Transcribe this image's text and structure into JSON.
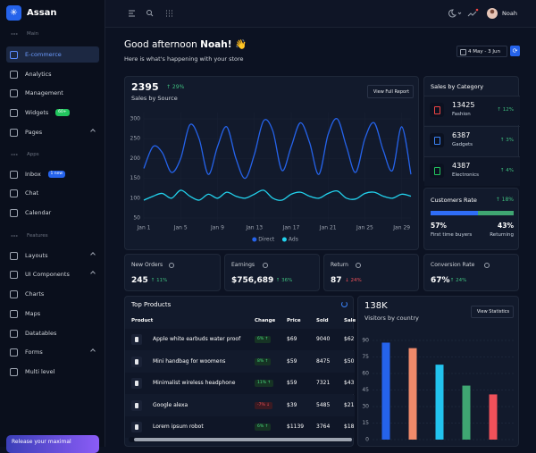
{
  "brand": "Assan",
  "nav": {
    "sections": [
      {
        "label": "Main",
        "items": [
          {
            "label": "E-commerce",
            "active": true
          },
          {
            "label": "Analytics"
          },
          {
            "label": "Management"
          },
          {
            "label": "Widgets",
            "badge": "60+",
            "badge_color": "#22c55e"
          },
          {
            "label": "Pages",
            "expandable": true
          }
        ]
      },
      {
        "label": "Apps",
        "items": [
          {
            "label": "Inbox",
            "badge": "1 new",
            "badge_color": "#2563eb"
          },
          {
            "label": "Chat"
          },
          {
            "label": "Calendar"
          }
        ]
      },
      {
        "label": "Features",
        "items": [
          {
            "label": "Layouts",
            "expandable": true
          },
          {
            "label": "UI Components",
            "expandable": true
          },
          {
            "label": "Charts"
          },
          {
            "label": "Maps"
          },
          {
            "label": "Datatables"
          },
          {
            "label": "Forms",
            "expandable": true
          },
          {
            "label": "Multi level"
          }
        ]
      }
    ],
    "promo": "Release your maximal"
  },
  "topbar": {
    "user": "Noah"
  },
  "header": {
    "greeting": "Good afternoon",
    "name": "Noah! 👋",
    "subtitle": "Here is what's happening with your store",
    "date_range": "4 May - 3 Jun"
  },
  "sales_source": {
    "total": "2395",
    "change": "↑ 29%",
    "title": "Sales by Source",
    "button": "View Full Report"
  },
  "sales_by_category": {
    "title": "Sales by Category",
    "items": [
      {
        "value": "13425",
        "name": "Fashion",
        "change": "↑ 12%",
        "color": "#ef4444"
      },
      {
        "value": "6387",
        "name": "Gadgets",
        "change": "↑ 3%",
        "color": "#3b82f6"
      },
      {
        "value": "4387",
        "name": "Electronics",
        "change": "↑ 4%",
        "color": "#22c55e"
      }
    ]
  },
  "customers_rate": {
    "title": "Customers Rate",
    "change": "↑ 18%",
    "segments": [
      {
        "value": 57,
        "label": "57%",
        "name": "First time buyers",
        "color": "#2f6df6"
      },
      {
        "value": 43,
        "label": "43%",
        "name": "Returning",
        "color": "#3fa672"
      }
    ]
  },
  "stats": [
    {
      "title": "New Orders",
      "value": "245",
      "change": "↑ 11%"
    },
    {
      "title": "Earnings",
      "value": "$756,689",
      "change": "↑ 36%"
    },
    {
      "title": "Return",
      "value": "87",
      "change": "↓ 24%"
    },
    {
      "title": "Conversion Rate",
      "value": "67%",
      "change": "↑ 24%"
    }
  ],
  "top_products": {
    "title": "Top Products",
    "columns": [
      "Product",
      "Change",
      "Price",
      "Sold",
      "Sale"
    ],
    "rows": [
      [
        "Apple white earbuds water proof",
        "6% ↑",
        "$69",
        "9040",
        "$62"
      ],
      [
        "Mini handbag for woomens",
        "8% ↑",
        "$59",
        "8475",
        "$50"
      ],
      [
        "Minimalist wireless headphone",
        "11% ↑",
        "$59",
        "7321",
        "$43"
      ],
      [
        "Google alexa",
        "-7% ↓",
        "$39",
        "5485",
        "$21"
      ],
      [
        "Lorem ipsum robot",
        "6% ↑",
        "$1139",
        "3764",
        "$18"
      ]
    ]
  },
  "visitors": {
    "total": "138K",
    "title": "Visitors by country",
    "button": "View Statistics"
  },
  "chart_data": [
    {
      "type": "line",
      "x": [
        1,
        2,
        3,
        4,
        5,
        6,
        7,
        8,
        9,
        10,
        11,
        12,
        13,
        14,
        15,
        16,
        17,
        18,
        19,
        20,
        21,
        22,
        23,
        24,
        25,
        26,
        27,
        28,
        29,
        30
      ],
      "series": [
        {
          "name": "Direct",
          "color": "#2563eb",
          "values": [
            175,
            230,
            215,
            165,
            200,
            285,
            250,
            160,
            230,
            280,
            200,
            150,
            210,
            295,
            270,
            170,
            230,
            290,
            240,
            160,
            260,
            300,
            230,
            165,
            250,
            290,
            220,
            170,
            280,
            160
          ]
        },
        {
          "name": "Ads",
          "color": "#22d3ee",
          "values": [
            95,
            105,
            112,
            100,
            120,
            105,
            95,
            110,
            100,
            115,
            105,
            100,
            110,
            120,
            100,
            95,
            110,
            115,
            105,
            100,
            112,
            118,
            100,
            98,
            112,
            115,
            105,
            100,
            110,
            105
          ]
        }
      ],
      "xlim": [
        1,
        30
      ],
      "xticks": [
        {
          "value": 1,
          "label": "Jan 1"
        },
        {
          "value": 5,
          "label": "Jan 5"
        },
        {
          "value": 9,
          "label": "Jan 9"
        },
        {
          "value": 13,
          "label": "Jan 13"
        },
        {
          "value": 17,
          "label": "Jan 17"
        },
        {
          "value": 21,
          "label": "Jan 21"
        },
        {
          "value": 25,
          "label": "Jan 25"
        },
        {
          "value": 29,
          "label": "Jan 29"
        }
      ],
      "ylim": [
        50,
        300
      ],
      "yticks": [
        50,
        100,
        150,
        200,
        250,
        300
      ],
      "grid": true,
      "legend": "bottom"
    },
    {
      "type": "bar",
      "categories": [
        null,
        null,
        null,
        null,
        null
      ],
      "values": [
        88,
        83,
        68,
        49,
        41
      ],
      "colors": [
        "#2563eb",
        "#f08a6a",
        "#22c3ee",
        "#3fa672",
        "#f0515a"
      ],
      "ylim": [
        0,
        90
      ],
      "yticks": [
        0,
        15,
        30,
        45,
        60,
        75,
        90
      ],
      "grid": true
    }
  ]
}
